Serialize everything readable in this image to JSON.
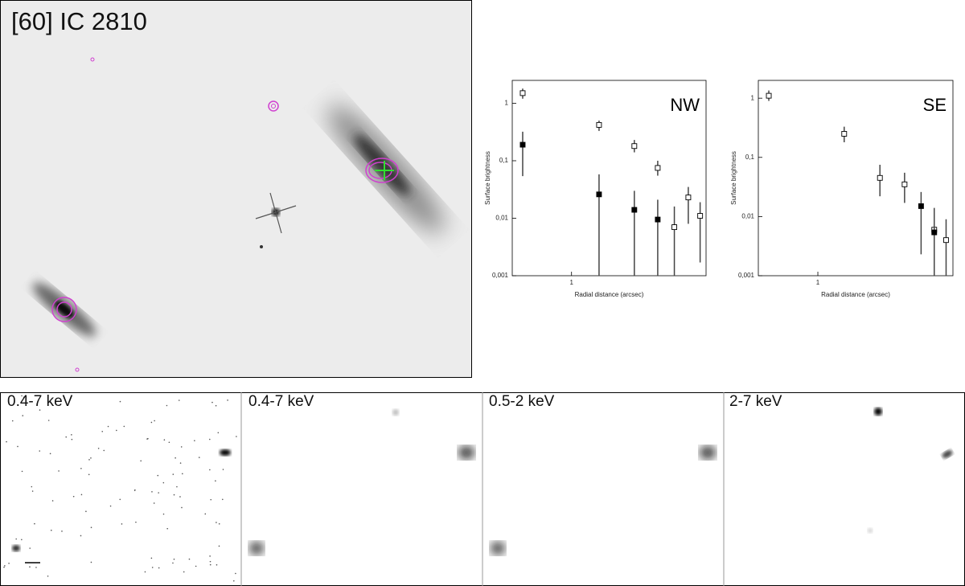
{
  "image": {
    "title": "[60] IC 2810"
  },
  "panels": [
    {
      "label": "0.4-7 keV"
    },
    {
      "label": "0.4-7 keV"
    },
    {
      "label": "0.5-2 keV"
    },
    {
      "label": "2-7 keV"
    }
  ],
  "chart_data": [
    {
      "type": "scatter",
      "label": "NW",
      "x_label": "Radial distance (arcsec)",
      "y_label": "Surface brightness",
      "xscale": "log",
      "yscale": "log",
      "xlim": [
        0.4,
        8
      ],
      "ylim": [
        0.001,
        2.5
      ],
      "xticks": [
        1
      ],
      "yticks": [
        {
          "value": 0.001,
          "label": "0,001"
        },
        {
          "value": 0.01,
          "label": "0,01"
        },
        {
          "value": 0.1,
          "label": "0,1"
        },
        1
      ],
      "series": [
        {
          "marker": "open",
          "color": "#000000",
          "x": [
            0.47,
            1.53,
            2.64,
            3.79,
            4.9,
            6.08,
            7.3
          ],
          "values": [
            1.5,
            0.42,
            0.18,
            0.075,
            0.007,
            0.023,
            0.011
          ],
          "lo": [
            1.2,
            0.33,
            0.14,
            0.055,
            0.001,
            0.008,
            0.0017
          ],
          "hi": [
            1.8,
            0.5,
            0.23,
            0.1,
            0.016,
            0.035,
            0.019
          ]
        },
        {
          "marker": "filled",
          "color": "#000000",
          "x": [
            0.47,
            1.53,
            2.64,
            3.79
          ],
          "values": [
            0.19,
            0.026,
            0.014,
            0.0095
          ],
          "lo": [
            0.054,
            0.001,
            0.001,
            0.001
          ],
          "hi": [
            0.32,
            0.058,
            0.03,
            0.021
          ]
        }
      ]
    },
    {
      "type": "scatter",
      "label": "SE",
      "x_label": "Radial distance (arcsec)",
      "y_label": "Surface brightness",
      "xscale": "log",
      "yscale": "log",
      "xlim": [
        0.4,
        8
      ],
      "ylim": [
        0.001,
        2.0
      ],
      "xticks": [
        1
      ],
      "yticks": [
        {
          "value": 0.001,
          "label": "0,001"
        },
        {
          "value": 0.01,
          "label": "0,01"
        },
        {
          "value": 0.1,
          "label": "0,1"
        },
        1
      ],
      "series": [
        {
          "marker": "open",
          "color": "#000000",
          "x": [
            0.47,
            1.5,
            2.6,
            3.8,
            6.0,
            7.2
          ],
          "values": [
            1.1,
            0.25,
            0.045,
            0.035,
            0.006,
            0.004
          ],
          "lo": [
            0.9,
            0.18,
            0.022,
            0.017,
            0.0015,
            0.001
          ],
          "hi": [
            1.35,
            0.33,
            0.075,
            0.055,
            0.009,
            0.009
          ]
        },
        {
          "marker": "filled",
          "color": "#000000",
          "x": [
            4.9,
            6.0
          ],
          "values": [
            0.015,
            0.0054
          ],
          "lo": [
            0.0023,
            0.001
          ],
          "hi": [
            0.026,
            0.014
          ]
        }
      ]
    }
  ]
}
